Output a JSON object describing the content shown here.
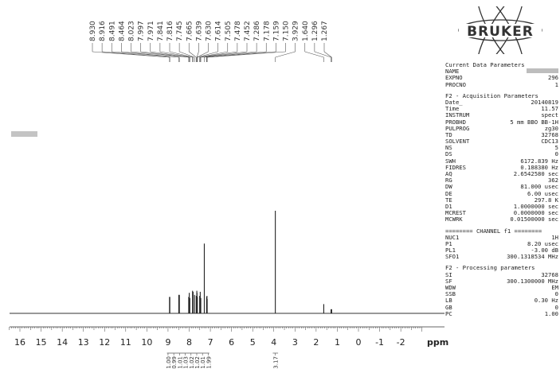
{
  "brand": {
    "logo_text": "BRUKER"
  },
  "chart_data": {
    "type": "nmr-spectrum",
    "x_unit_label": "ppm",
    "x_range": [
      16.5,
      -3.0
    ],
    "x_ticks": [
      "16",
      "15",
      "14",
      "13",
      "12",
      "11",
      "10",
      "9",
      "8",
      "7",
      "6",
      "5",
      "4",
      "3",
      "2",
      "1",
      "0",
      "-1",
      "-2"
    ],
    "peak_labels": [
      "8.930",
      "8.916",
      "8.491",
      "8.464",
      "8.023",
      "7.997",
      "7.971",
      "7.841",
      "7.816",
      "7.745",
      "7.665",
      "7.639",
      "7.630",
      "7.614",
      "7.505",
      "7.478",
      "7.452",
      "7.286",
      "7.178",
      "7.159",
      "7.150",
      "3.929",
      "1.640",
      "1.296",
      "1.267"
    ],
    "peaks": [
      {
        "ppm": 8.93,
        "height": 0.16
      },
      {
        "ppm": 8.916,
        "height": 0.16
      },
      {
        "ppm": 8.491,
        "height": 0.18
      },
      {
        "ppm": 8.464,
        "height": 0.18
      },
      {
        "ppm": 8.023,
        "height": 0.16
      },
      {
        "ppm": 7.997,
        "height": 0.2
      },
      {
        "ppm": 7.971,
        "height": 0.15
      },
      {
        "ppm": 7.841,
        "height": 0.22
      },
      {
        "ppm": 7.816,
        "height": 0.21
      },
      {
        "ppm": 7.745,
        "height": 0.18
      },
      {
        "ppm": 7.665,
        "height": 0.17
      },
      {
        "ppm": 7.639,
        "height": 0.22
      },
      {
        "ppm": 7.63,
        "height": 0.2
      },
      {
        "ppm": 7.614,
        "height": 0.16
      },
      {
        "ppm": 7.505,
        "height": 0.17
      },
      {
        "ppm": 7.478,
        "height": 0.21
      },
      {
        "ppm": 7.452,
        "height": 0.15
      },
      {
        "ppm": 7.286,
        "height": 0.68
      },
      {
        "ppm": 7.178,
        "height": 0.16
      },
      {
        "ppm": 7.159,
        "height": 0.17
      },
      {
        "ppm": 7.15,
        "height": 0.14
      },
      {
        "ppm": 3.929,
        "height": 1.0
      },
      {
        "ppm": 1.64,
        "height": 0.09
      },
      {
        "ppm": 1.296,
        "height": 0.04
      },
      {
        "ppm": 1.267,
        "height": 0.04
      }
    ],
    "integrals": [
      {
        "ppm": 8.93,
        "value": "1.00"
      },
      {
        "ppm": 8.48,
        "value": "0.99"
      },
      {
        "ppm": 8.0,
        "value": "1.01"
      },
      {
        "ppm": 7.83,
        "value": "1.03"
      },
      {
        "ppm": 7.65,
        "value": "1.02"
      },
      {
        "ppm": 7.48,
        "value": "1.02"
      },
      {
        "ppm": 7.29,
        "value": "1.01"
      },
      {
        "ppm": 7.16,
        "value": "1.99"
      },
      {
        "ppm": 3.929,
        "value": "3.17"
      }
    ]
  },
  "params": {
    "header": [
      "Current Data Parameters"
    ],
    "data_params": [
      {
        "k": "NAME",
        "v": ""
      },
      {
        "k": "EXPNO",
        "v": "296"
      },
      {
        "k": "PROCNO",
        "v": "1"
      }
    ],
    "acq_title": "F2 - Acquisition Parameters",
    "acq": [
      {
        "k": "Date_",
        "v": "20140819"
      },
      {
        "k": "Time",
        "v": "11.57"
      },
      {
        "k": "INSTRUM",
        "v": "spect"
      },
      {
        "k": "PROBHD",
        "v": "5 mm BBO BB-1H"
      },
      {
        "k": "PULPROG",
        "v": "zg30"
      },
      {
        "k": "TD",
        "v": "32768"
      },
      {
        "k": "SOLVENT",
        "v": "CDC13"
      },
      {
        "k": "NS",
        "v": "5"
      },
      {
        "k": "DS",
        "v": "0"
      },
      {
        "k": "SWH",
        "v": "6172.839 Hz"
      },
      {
        "k": "FIDRES",
        "v": "0.188380 Hz"
      },
      {
        "k": "AQ",
        "v": "2.6542580 sec"
      },
      {
        "k": "RG",
        "v": "362"
      },
      {
        "k": "DW",
        "v": "81.000 usec"
      },
      {
        "k": "DE",
        "v": "6.00 usec"
      },
      {
        "k": "TE",
        "v": "297.8 K"
      },
      {
        "k": "D1",
        "v": "1.0000000 sec"
      },
      {
        "k": "MCREST",
        "v": "0.0000000 sec"
      },
      {
        "k": "MCWRK",
        "v": "0.01500000 sec"
      }
    ],
    "channel_title": "======== CHANNEL f1 ========",
    "channel": [
      {
        "k": "NUC1",
        "v": "1H"
      },
      {
        "k": "P1",
        "v": "8.20 usec"
      },
      {
        "k": "PL1",
        "v": "-3.00 dB"
      },
      {
        "k": "SFO1",
        "v": "300.1318534 MHz"
      }
    ],
    "proc_title": "F2 - Processing parameters",
    "proc": [
      {
        "k": "SI",
        "v": "32768"
      },
      {
        "k": "SF",
        "v": "300.1300000 MHz"
      },
      {
        "k": "WDW",
        "v": "EM"
      },
      {
        "k": "SSB",
        "v": "0"
      },
      {
        "k": "LB",
        "v": "0.30 Hz"
      },
      {
        "k": "GB",
        "v": "0"
      },
      {
        "k": "PC",
        "v": "1.00"
      }
    ]
  }
}
